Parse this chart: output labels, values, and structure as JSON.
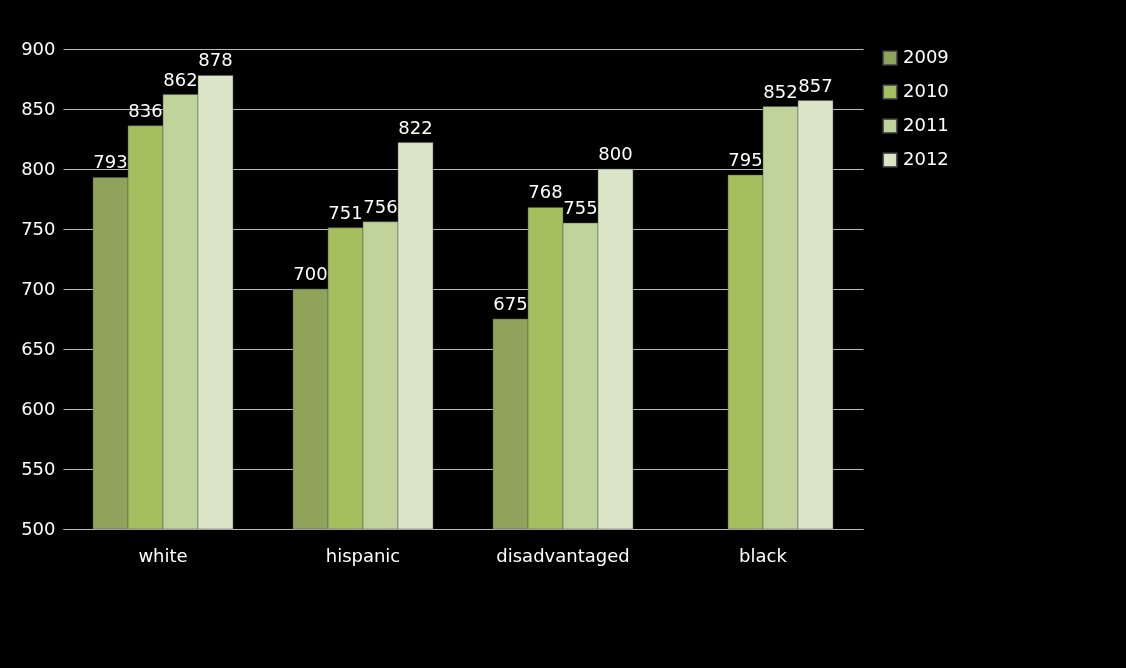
{
  "chart_data": {
    "type": "bar",
    "categories": [
      "white",
      "hispanic",
      "disadvantaged",
      "black"
    ],
    "series": [
      {
        "name": "2009",
        "color": "#8fa35a",
        "values": [
          793,
          700,
          675,
          null
        ]
      },
      {
        "name": "2010",
        "color": "#a6bf5e",
        "values": [
          836,
          751,
          768,
          795
        ]
      },
      {
        "name": "2011",
        "color": "#c0d39a",
        "values": [
          862,
          756,
          755,
          852
        ]
      },
      {
        "name": "2012",
        "color": "#dde5c8",
        "values": [
          878,
          822,
          800,
          857
        ]
      }
    ],
    "ylim": [
      500,
      900
    ],
    "yticks": [
      500,
      550,
      600,
      650,
      700,
      750,
      800,
      850,
      900
    ],
    "grid": true,
    "legend": "right",
    "data_labels": true
  }
}
